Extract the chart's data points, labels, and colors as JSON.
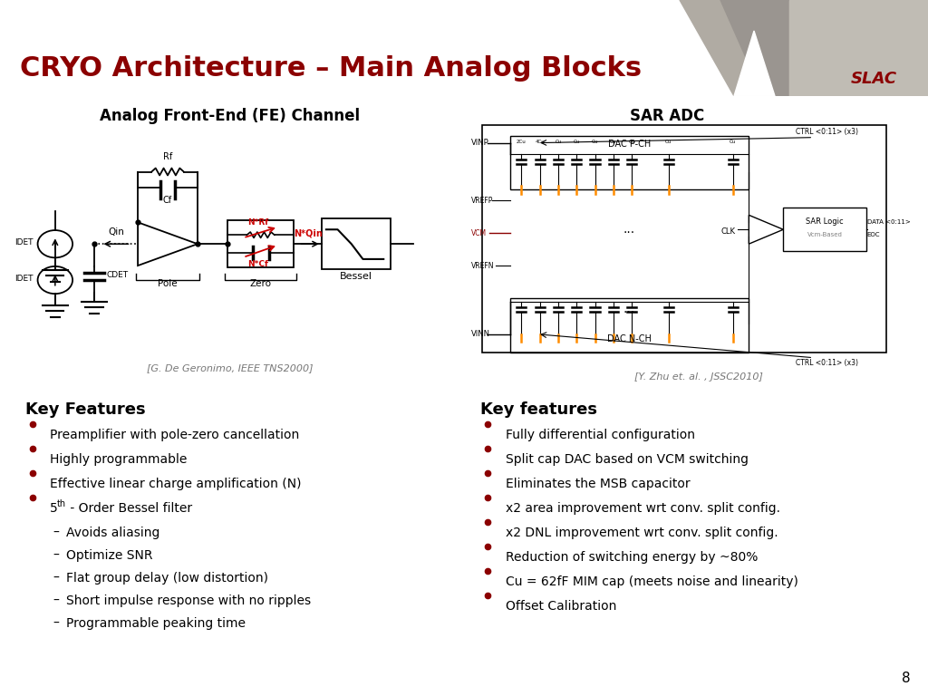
{
  "title": "CRYO Architecture – Main Analog Blocks",
  "title_color": "#8B0000",
  "header_bg": "#CCCAC4",
  "slide_bg": "#FFFFFF",
  "red_line_color": "#8B0000",
  "divider_color": "#8B0000",
  "left_section_title": "Analog Front-End (FE) Channel",
  "right_section_title": "SAR ADC",
  "ref_left": "[G. De Geronimo, IEEE TNS2000]",
  "ref_right": "[Y. Zhu et. al. , JSSC2010]",
  "left_key_title": "Key Features",
  "left_bullets": [
    "Preamplifier with pole-zero cancellation",
    "Highly programmable",
    "Effective linear charge amplification (N)",
    "5th - Order Bessel filter"
  ],
  "left_sub_bullets": [
    "Avoids aliasing",
    "Optimize SNR",
    "Flat group delay (low distortion)",
    "Short impulse response with no ripples",
    "Programmable peaking time"
  ],
  "right_key_title": "Key features",
  "right_bullets": [
    "Fully differential configuration",
    "Split cap DAC based on VCM switching",
    "Eliminates the MSB capacitor",
    "x2 area improvement wrt conv. split config.",
    "x2 DNL improvement wrt conv. split config.",
    "Reduction of switching energy by ~80%",
    "Cu = 62fF MIM cap (meets noise and linearity)",
    "Offset Calibration"
  ],
  "page_number": "8",
  "bullet_color": "#8B0000",
  "text_color": "#000000",
  "key_title_color": "#000000",
  "header_tri_main": "#B8B4AC",
  "header_tri_dark": "#8A8278",
  "header_tri_light": "#C8C4BC"
}
